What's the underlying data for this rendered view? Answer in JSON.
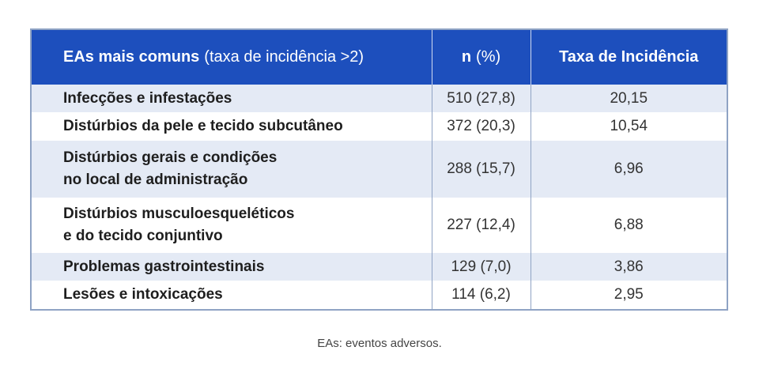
{
  "table": {
    "header": {
      "col1_bold": "EAs mais comuns",
      "col1_rest": "(taxa de incidência >2)",
      "col2_bold": "n",
      "col2_rest": "(%)",
      "col3": "Taxa de Incidência"
    },
    "rows": [
      {
        "label": [
          "Infecções e infestações"
        ],
        "n": "510 (27,8)",
        "rate": "20,15"
      },
      {
        "label": [
          "Distúrbios da pele e tecido subcutâneo"
        ],
        "n": "372 (20,3)",
        "rate": "10,54"
      },
      {
        "label": [
          "Distúrbios gerais e condições",
          "no local de administração"
        ],
        "n": "288 (15,7)",
        "rate": "6,96"
      },
      {
        "label": [
          "Distúrbios musculoesqueléticos",
          "e do tecido conjuntivo"
        ],
        "n": "227 (12,4)",
        "rate": "6,88"
      },
      {
        "label": [
          "Problemas gastrointestinais"
        ],
        "n": "129 (7,0)",
        "rate": "3,86"
      },
      {
        "label": [
          "Lesões e intoxicações"
        ],
        "n": "114 (6,2)",
        "rate": "2,95"
      }
    ]
  },
  "footnote": "EAs: eventos adversos."
}
